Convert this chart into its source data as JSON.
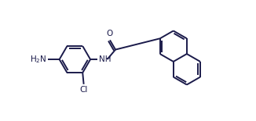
{
  "bg_color": "#ffffff",
  "line_color": "#1a1a4a",
  "lw": 1.4,
  "fs": 7.5,
  "figsize": [
    3.26,
    1.55
  ],
  "dpi": 100,
  "xlim": [
    -0.5,
    10.5
  ],
  "ylim": [
    -0.2,
    5.2
  ]
}
